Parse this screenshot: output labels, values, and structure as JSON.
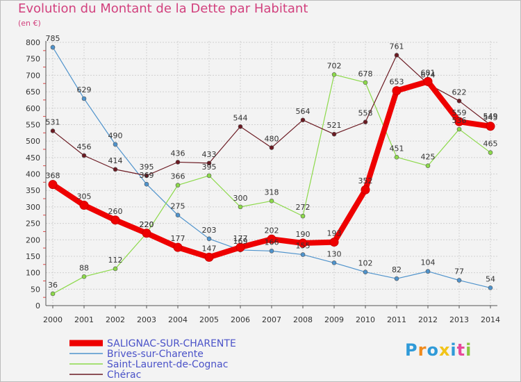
{
  "chart_data": {
    "type": "line",
    "title": "Evolution du Montant de la Dette par Habitant",
    "ylabel": "(en €)",
    "categories": [
      "2000",
      "2001",
      "2002",
      "2003",
      "2004",
      "2005",
      "2006",
      "2007",
      "2008",
      "2009",
      "2010",
      "2011",
      "2012",
      "2013",
      "2014"
    ],
    "y_ticks": [
      "0",
      "50",
      "100",
      "150",
      "200",
      "250",
      "300",
      "350",
      "400",
      "450",
      "500",
      "550",
      "600",
      "650",
      "700",
      "750",
      "800"
    ],
    "ylim": [
      0,
      800
    ],
    "grid": true,
    "legend_position": "bottom-left",
    "series": [
      {
        "name": "SALIGNAC-SUR-CHARENTE",
        "color": "#ee0000",
        "values": [
          368,
          305,
          260,
          220,
          177,
          147,
          177,
          202,
          190,
          193,
          352,
          653,
          681,
          559,
          545
        ]
      },
      {
        "name": "Brives-sur-Charente",
        "color": "#4f93cc",
        "values": [
          785,
          629,
          490,
          369,
          275,
          203,
          169,
          166,
          155,
          130,
          102,
          82,
          104,
          77,
          54
        ]
      },
      {
        "name": "Saint-Laurent-de-Cognac",
        "color": "#8cd94a",
        "values": [
          36,
          88,
          112,
          220,
          366,
          395,
          300,
          318,
          272,
          702,
          678,
          451,
          425,
          536,
          465
        ]
      },
      {
        "name": "Chérac",
        "color": "#6b1a22",
        "values": [
          531,
          456,
          414,
          395,
          436,
          433,
          544,
          480,
          564,
          521,
          558,
          761,
          674,
          622,
          549
        ]
      }
    ]
  },
  "logo": {
    "letters": [
      "P",
      "r",
      "o",
      "x",
      "i",
      "t",
      "i"
    ],
    "colors": [
      "#2f9ad8",
      "#f08a1c",
      "#2f9ad8",
      "#f2c418",
      "#2f9ad8",
      "#e84a9a",
      "#8cc63f"
    ]
  }
}
